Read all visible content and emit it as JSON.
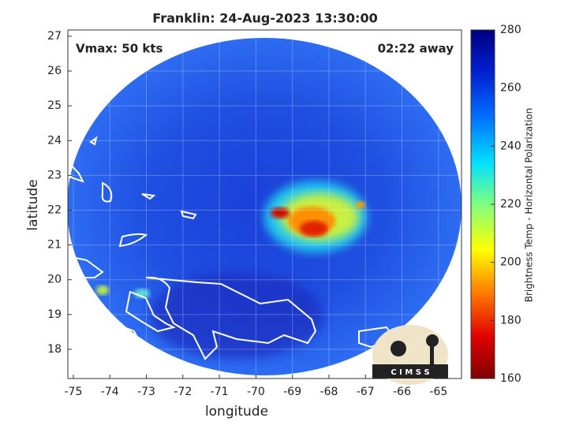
{
  "chart_data": {
    "type": "image-map",
    "title": "Franklin: 24-Aug-2023 13:30:00",
    "annotations": [
      "Vmax: 50 kts",
      "02:22 away"
    ],
    "x_label": "longitude",
    "y_label": "latitude",
    "xlim": [
      -75.15,
      -64.37
    ],
    "ylim": [
      17.16,
      27.18
    ],
    "xticks": [
      -75,
      -74,
      -73,
      -72,
      -71,
      -70,
      -69,
      -68,
      -67,
      -66,
      -65
    ],
    "yticks": [
      18,
      19,
      20,
      21,
      22,
      23,
      24,
      25,
      26,
      27
    ],
    "grid": true,
    "colorbar": {
      "label": "Brightness Temp - Horizontal Polarization",
      "lim": [
        160,
        280
      ],
      "ticks": [
        160,
        180,
        200,
        220,
        240,
        260,
        280
      ]
    },
    "logo_text": "C I M S S"
  }
}
